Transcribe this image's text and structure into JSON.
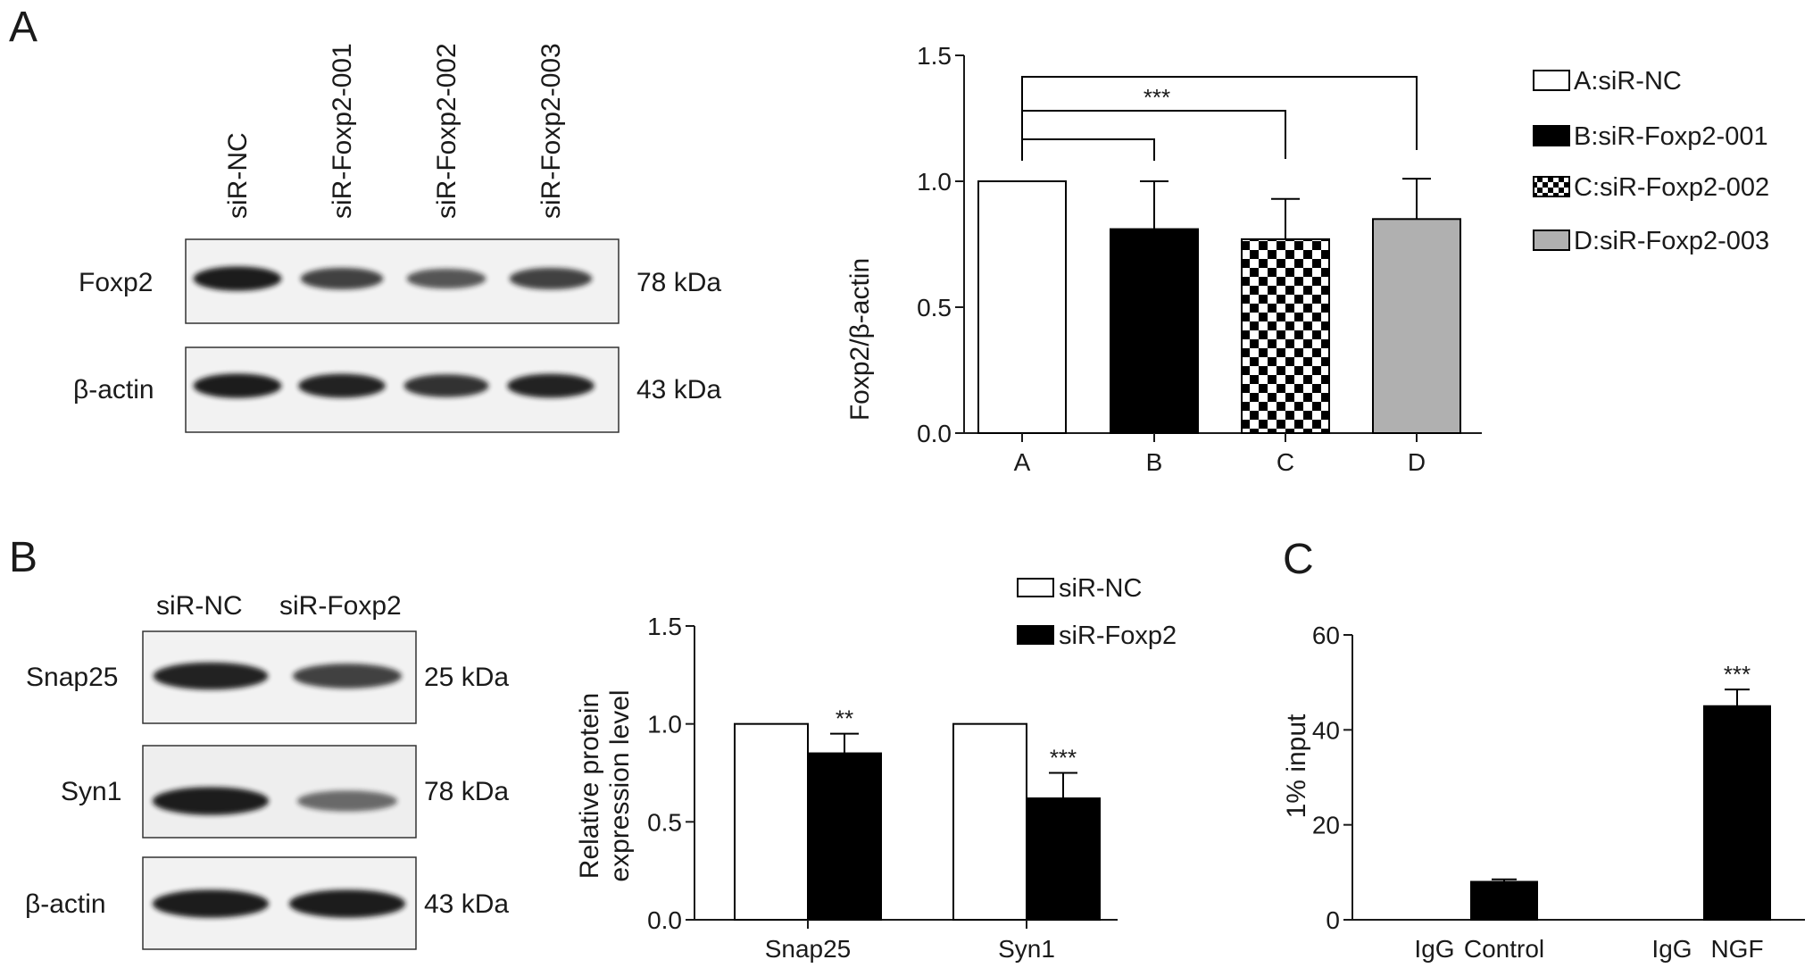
{
  "panels": {
    "a": "A",
    "b": "B",
    "c": "C"
  },
  "colors": {
    "white": "#ffffff",
    "black": "#000000",
    "gray": "#b0b0b0",
    "band": "#141414"
  },
  "blot_a": {
    "lanes": [
      "siR-NC",
      "siR-Foxp2-001",
      "siR-Foxp2-002",
      "siR-Foxp2-003"
    ],
    "rows": [
      {
        "label": "Foxp2",
        "size": "78 kDa",
        "intensity": [
          0.95,
          0.7,
          0.55,
          0.7
        ]
      },
      {
        "label": "β-actin",
        "size": "43 kDa",
        "intensity": [
          0.95,
          0.9,
          0.8,
          0.9
        ]
      }
    ]
  },
  "blot_b": {
    "lanes": [
      "siR-NC",
      "siR-Foxp2"
    ],
    "rows": [
      {
        "label": "Snap25",
        "size": "25 kDa",
        "intensity": [
          0.9,
          0.7
        ]
      },
      {
        "label": "Syn1",
        "size": "78 kDa",
        "intensity": [
          0.95,
          0.4
        ]
      },
      {
        "label": "β-actin",
        "size": "43 kDa",
        "intensity": [
          0.95,
          0.95
        ]
      }
    ]
  },
  "chart_data": [
    {
      "type": "bar",
      "ylabel": "Foxp2/β-actin",
      "categories": [
        "A",
        "B",
        "C",
        "D"
      ],
      "values": [
        1.0,
        0.81,
        0.77,
        0.85
      ],
      "errors": [
        0,
        0.19,
        0.16,
        0.16
      ],
      "ylim": [
        0,
        1.5
      ],
      "yticks": [
        "0.0",
        "0.5",
        "1.0",
        "1.5"
      ],
      "fills": [
        "white",
        "black",
        "checker",
        "gray"
      ],
      "legend": [
        "A:siR-NC",
        "B:siR-Foxp2-001",
        "C:siR-Foxp2-002",
        "D:siR-Foxp2-003"
      ],
      "significance": "***"
    },
    {
      "type": "bar",
      "ylabel": [
        "Relative protein",
        "expression level"
      ],
      "categories": [
        "Snap25",
        "Syn1"
      ],
      "series": [
        {
          "name": "siR-NC",
          "values": [
            1.0,
            1.0
          ],
          "errors": [
            0,
            0
          ]
        },
        {
          "name": "siR-Foxp2",
          "values": [
            0.85,
            0.62
          ],
          "errors": [
            0.1,
            0.13
          ]
        }
      ],
      "stars": [
        "**",
        "***"
      ],
      "ylim": [
        0,
        1.5
      ],
      "yticks": [
        "0.0",
        "0.5",
        "1.0",
        "1.5"
      ]
    },
    {
      "type": "bar",
      "ylabel": "1% input",
      "categories": [
        "IgG",
        "Control",
        "IgG",
        "NGF"
      ],
      "values": [
        0,
        8,
        0,
        45
      ],
      "errors": [
        0,
        0.5,
        0,
        3.5
      ],
      "stars": [
        "",
        "",
        "",
        "***"
      ],
      "ylim": [
        0,
        60
      ],
      "yticks": [
        "0",
        "20",
        "40",
        "60"
      ]
    }
  ]
}
